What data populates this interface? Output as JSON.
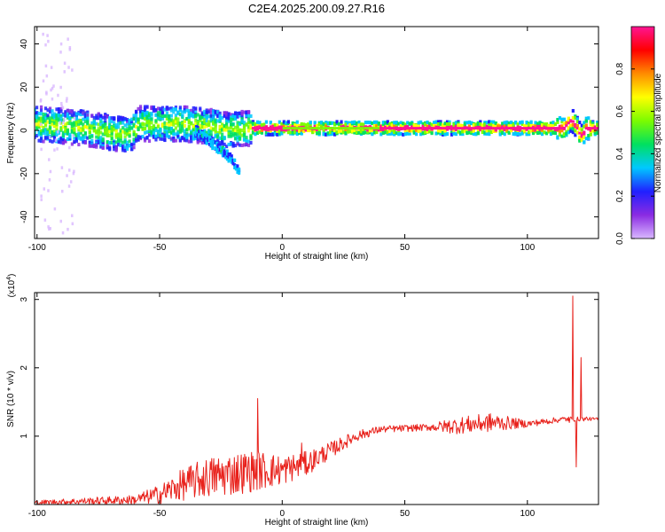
{
  "figure": {
    "title": "C2E4.2025.200.09.27.R16"
  },
  "chart_data": [
    {
      "type": "heatmap",
      "xlabel": "Height of straight line (km)",
      "ylabel": "Frequency (Hz)",
      "xlim": [
        -101,
        129
      ],
      "ylim": [
        -50,
        48
      ],
      "xticks": [
        -100,
        -50,
        0,
        50,
        100
      ],
      "yticks": [
        -40,
        -20,
        0,
        20,
        40
      ],
      "colorbar": {
        "label": "Normalized spectral amplitude",
        "range": [
          0,
          1
        ],
        "ticks": [
          "0.0",
          "0.2",
          "0.4",
          "0.6",
          "0.8"
        ],
        "colors": [
          "#d9b8ff",
          "#8a2be2",
          "#2020ff",
          "#00c8ff",
          "#00e060",
          "#7cfc00",
          "#ffff00",
          "#ff8c00",
          "#ff0000",
          "#ff1493"
        ]
      },
      "ridge": [
        {
          "x": -100,
          "y": 3
        },
        {
          "x": -90,
          "y": 2
        },
        {
          "x": -80,
          "y": 1
        },
        {
          "x": -70,
          "y": -1
        },
        {
          "x": -62,
          "y": -2
        },
        {
          "x": -58,
          "y": 3
        },
        {
          "x": -50,
          "y": 3
        },
        {
          "x": -40,
          "y": 3
        },
        {
          "x": -30,
          "y": 2
        },
        {
          "x": -22,
          "y": 0
        },
        {
          "x": -15,
          "y": 1
        },
        {
          "x": -10,
          "y": 1
        },
        {
          "x": 0,
          "y": 1
        },
        {
          "x": 20,
          "y": 1
        },
        {
          "x": 40,
          "y": 1
        },
        {
          "x": 60,
          "y": 1
        },
        {
          "x": 80,
          "y": 1
        },
        {
          "x": 100,
          "y": 1
        },
        {
          "x": 115,
          "y": 1
        },
        {
          "x": 118,
          "y": 5
        },
        {
          "x": 120,
          "y": 2
        },
        {
          "x": 122,
          "y": -3
        },
        {
          "x": 124,
          "y": 1
        },
        {
          "x": 129,
          "y": 1
        }
      ],
      "branch": [
        {
          "x": -35,
          "y": 0
        },
        {
          "x": -30,
          "y": -5
        },
        {
          "x": -25,
          "y": -9
        },
        {
          "x": -20,
          "y": -14
        },
        {
          "x": -17,
          "y": -20
        }
      ]
    },
    {
      "type": "line",
      "xlabel": "Height of straight line (km)",
      "ylabel": "SNR (10 * v/v)",
      "y_multiplier_label": "(x10",
      "y_multiplier_exponent": "4",
      "y_multiplier_close": ")",
      "xlim": [
        -101,
        129
      ],
      "ylim": [
        0,
        3.1
      ],
      "xticks": [
        -100,
        -50,
        0,
        50,
        100
      ],
      "yticks": [
        1,
        2,
        3
      ],
      "series": [
        {
          "color": "#e8211b",
          "envelope": [
            {
              "x": -101,
              "mean": 0.03,
              "amp": 0.03
            },
            {
              "x": -80,
              "mean": 0.05,
              "amp": 0.05
            },
            {
              "x": -60,
              "mean": 0.07,
              "amp": 0.07
            },
            {
              "x": -50,
              "mean": 0.15,
              "amp": 0.14
            },
            {
              "x": -40,
              "mean": 0.3,
              "amp": 0.24
            },
            {
              "x": -30,
              "mean": 0.4,
              "amp": 0.3
            },
            {
              "x": -20,
              "mean": 0.45,
              "amp": 0.32
            },
            {
              "x": -10,
              "mean": 0.5,
              "amp": 0.3
            },
            {
              "x": 0,
              "mean": 0.5,
              "amp": 0.22
            },
            {
              "x": 10,
              "mean": 0.6,
              "amp": 0.18
            },
            {
              "x": 20,
              "mean": 0.8,
              "amp": 0.12
            },
            {
              "x": 30,
              "mean": 1.0,
              "amp": 0.08
            },
            {
              "x": 40,
              "mean": 1.1,
              "amp": 0.05
            },
            {
              "x": 60,
              "mean": 1.13,
              "amp": 0.05
            },
            {
              "x": 70,
              "mean": 1.15,
              "amp": 0.12
            },
            {
              "x": 85,
              "mean": 1.2,
              "amp": 0.14
            },
            {
              "x": 100,
              "mean": 1.18,
              "amp": 0.05
            },
            {
              "x": 115,
              "mean": 1.25,
              "amp": 0.04
            },
            {
              "x": 129,
              "mean": 1.25,
              "amp": 0.02
            }
          ],
          "features": [
            {
              "x": -10,
              "y": 1.55
            },
            {
              "x": 8,
              "y": 0.9
            },
            {
              "x": 117,
              "y": 1.2
            },
            {
              "x": 118.5,
              "y": 3.05
            },
            {
              "x": 120,
              "y": 0.55
            },
            {
              "x": 122,
              "y": 2.15
            },
            {
              "x": 124,
              "y": 1.28
            }
          ]
        }
      ]
    }
  ]
}
